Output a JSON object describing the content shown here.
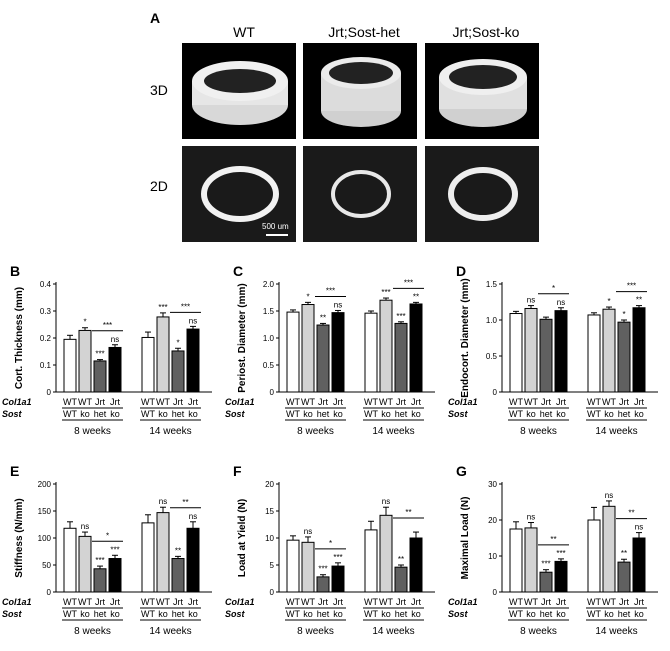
{
  "panel_a": {
    "letter": "A",
    "columns": [
      "WT",
      "Jrt;Sost-het",
      "Jrt;Sost-ko"
    ],
    "rows": [
      "3D",
      "2D"
    ],
    "scale_bar": "500 um"
  },
  "genotype_rows": {
    "row1": "Col1a1",
    "row2": "Sost"
  },
  "groups": [
    "8 weeks",
    "14 weeks"
  ],
  "colors": {
    "WT_WT": "#ffffff",
    "WT_ko": "#d3d3d3",
    "Jrt_het": "#606060",
    "Jrt_ko": "#000000"
  },
  "chart_data": [
    {
      "letter": "B",
      "type": "bar",
      "ylabel": "Cort. Thickness (mm)",
      "ylim": [
        0,
        0.4
      ],
      "yticks": [
        "0",
        "0.1",
        "0.2",
        "0.3",
        "0.4"
      ],
      "col1a1": [
        "WT",
        "WT",
        "Jrt",
        "Jrt",
        "WT",
        "WT",
        "Jrt",
        "Jrt"
      ],
      "sost": [
        "WT",
        "ko",
        "het",
        "ko",
        "WT",
        "ko",
        "het",
        "ko"
      ],
      "values": [
        0.195,
        0.228,
        0.115,
        0.165,
        0.202,
        0.278,
        0.152,
        0.233
      ],
      "errors": [
        0.015,
        0.01,
        0.005,
        0.01,
        0.02,
        0.015,
        0.01,
        0.01
      ],
      "sig": [
        "",
        "*",
        "***",
        "ns",
        "",
        "***",
        "*",
        "ns"
      ],
      "brackets": [
        {
          "label": "***"
        },
        {
          "label": "***"
        }
      ]
    },
    {
      "letter": "C",
      "type": "bar",
      "ylabel": "Periost. Diameter (mm)",
      "ylim": [
        0,
        2.0
      ],
      "yticks": [
        "0",
        "0.5",
        "1.0",
        "1.5",
        "2.0"
      ],
      "col1a1": [
        "WT",
        "WT",
        "Jrt",
        "Jrt",
        "WT",
        "WT",
        "Jrt",
        "Jrt"
      ],
      "sost": [
        "WT",
        "ko",
        "het",
        "ko",
        "WT",
        "ko",
        "het",
        "ko"
      ],
      "values": [
        1.48,
        1.62,
        1.24,
        1.47,
        1.46,
        1.7,
        1.27,
        1.63
      ],
      "errors": [
        0.04,
        0.04,
        0.03,
        0.04,
        0.04,
        0.04,
        0.03,
        0.03
      ],
      "sig": [
        "",
        "*",
        "**",
        "ns",
        "",
        "***",
        "***",
        "**"
      ],
      "brackets": [
        {
          "label": "***"
        },
        {
          "label": "***"
        }
      ]
    },
    {
      "letter": "D",
      "type": "bar",
      "ylabel": "Endocort. Diameter (mm)",
      "ylim": [
        0,
        1.5
      ],
      "yticks": [
        "0",
        "0.5",
        "1.0",
        "1.5"
      ],
      "col1a1": [
        "WT",
        "WT",
        "Jrt",
        "Jrt",
        "WT",
        "WT",
        "Jrt",
        "Jrt"
      ],
      "sost": [
        "WT",
        "ko",
        "het",
        "ko",
        "WT",
        "ko",
        "het",
        "ko"
      ],
      "values": [
        1.09,
        1.16,
        1.01,
        1.13,
        1.07,
        1.15,
        0.97,
        1.17
      ],
      "errors": [
        0.03,
        0.04,
        0.03,
        0.04,
        0.03,
        0.03,
        0.03,
        0.03
      ],
      "sig": [
        "",
        "ns",
        "",
        "ns",
        "",
        "*",
        "*",
        "**"
      ],
      "brackets": [
        {
          "label": "*"
        },
        {
          "label": "***"
        }
      ]
    },
    {
      "letter": "E",
      "type": "bar",
      "ylabel": "Stiffness (N/mm)",
      "ylim": [
        0,
        200
      ],
      "yticks": [
        "0",
        "50",
        "100",
        "150",
        "200"
      ],
      "col1a1": [
        "WT",
        "WT",
        "Jrt",
        "Jrt",
        "WT",
        "WT",
        "Jrt",
        "Jrt"
      ],
      "sost": [
        "WT",
        "ko",
        "het",
        "ko",
        "WT",
        "ko",
        "het",
        "ko"
      ],
      "values": [
        118,
        103,
        43,
        62,
        128,
        147,
        62,
        118
      ],
      "errors": [
        12,
        8,
        5,
        6,
        15,
        10,
        4,
        12
      ],
      "sig": [
        "",
        "ns",
        "***",
        "***",
        "",
        "ns",
        "**",
        "ns"
      ],
      "brackets": [
        {
          "label": "*"
        },
        {
          "label": "**"
        }
      ]
    },
    {
      "letter": "F",
      "type": "bar",
      "ylabel": "Load at Yield (N)",
      "ylim": [
        0,
        20
      ],
      "yticks": [
        "0",
        "5",
        "10",
        "15",
        "20"
      ],
      "col1a1": [
        "WT",
        "WT",
        "Jrt",
        "Jrt",
        "WT",
        "WT",
        "Jrt",
        "Jrt"
      ],
      "sost": [
        "WT",
        "ko",
        "het",
        "ko",
        "WT",
        "ko",
        "het",
        "ko"
      ],
      "values": [
        9.6,
        9.2,
        2.8,
        4.8,
        11.5,
        14.2,
        4.6,
        10.0
      ],
      "errors": [
        0.8,
        1.0,
        0.4,
        0.6,
        1.6,
        1.5,
        0.4,
        1.1
      ],
      "sig": [
        "",
        "ns",
        "***",
        "***",
        "",
        "ns",
        "**",
        ""
      ],
      "brackets": [
        {
          "label": "*"
        },
        {
          "label": "**"
        }
      ]
    },
    {
      "letter": "G",
      "type": "bar",
      "ylabel": "Maximal Load (N)",
      "ylim": [
        0,
        30
      ],
      "yticks": [
        "0",
        "10",
        "20",
        "30"
      ],
      "col1a1": [
        "WT",
        "WT",
        "Jrt",
        "Jrt",
        "WT",
        "WT",
        "Jrt",
        "Jrt"
      ],
      "sost": [
        "WT",
        "ko",
        "het",
        "ko",
        "WT",
        "ko",
        "het",
        "ko"
      ],
      "values": [
        17.5,
        17.8,
        5.5,
        8.5,
        20.0,
        23.8,
        8.3,
        15.0
      ],
      "errors": [
        2.0,
        1.5,
        0.7,
        0.7,
        3.5,
        1.5,
        0.8,
        1.5
      ],
      "sig": [
        "",
        "ns",
        "***",
        "***",
        "",
        "ns",
        "**",
        "ns"
      ],
      "brackets": [
        {
          "label": "**"
        },
        {
          "label": "**"
        }
      ]
    }
  ]
}
